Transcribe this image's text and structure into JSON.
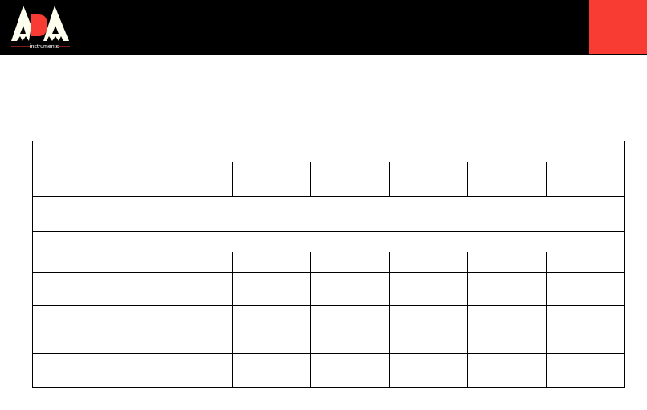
{
  "header": {
    "logo": {
      "letters": "ADA",
      "tagline": "instruments"
    },
    "colors": {
      "background": "#000000",
      "accent": "#f93c33",
      "logo_letters": "#fffff0"
    }
  },
  "table": {
    "columns": 7,
    "rows": 8,
    "cells_text": "empty"
  }
}
